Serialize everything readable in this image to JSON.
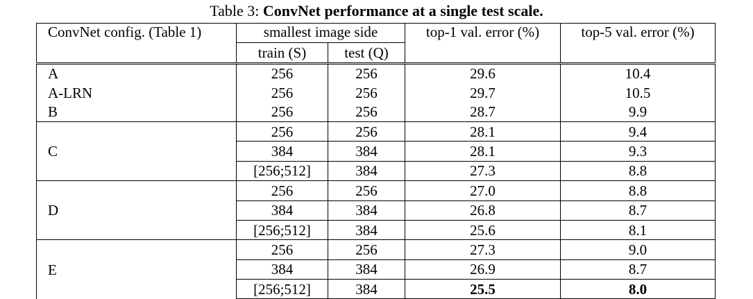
{
  "caption": {
    "label": "Table 3:",
    "title": "ConvNet performance at a single test scale."
  },
  "table": {
    "header": {
      "config": "ConvNet config. (Table 1)",
      "image_side": "smallest image side",
      "train": "train (S)",
      "test": "test (Q)",
      "top1": "top-1 val. error (%)",
      "top5": "top-5 val. error (%)"
    },
    "groups": [
      {
        "config": "A",
        "rows": [
          [
            "256",
            "256",
            "29.6",
            "10.4"
          ]
        ]
      },
      {
        "config": "A-LRN",
        "rows": [
          [
            "256",
            "256",
            "29.7",
            "10.5"
          ]
        ]
      },
      {
        "config": "B",
        "rows": [
          [
            "256",
            "256",
            "28.7",
            "9.9"
          ]
        ]
      },
      {
        "config": "C",
        "rows": [
          [
            "256",
            "256",
            "28.1",
            "9.4"
          ],
          [
            "384",
            "384",
            "28.1",
            "9.3"
          ],
          [
            "[256;512]",
            "384",
            "27.3",
            "8.8"
          ]
        ]
      },
      {
        "config": "D",
        "rows": [
          [
            "256",
            "256",
            "27.0",
            "8.8"
          ],
          [
            "384",
            "384",
            "26.8",
            "8.7"
          ],
          [
            "[256;512]",
            "384",
            "25.6",
            "8.1"
          ]
        ]
      },
      {
        "config": "E",
        "rows": [
          [
            "256",
            "256",
            "27.3",
            "9.0"
          ],
          [
            "384",
            "384",
            "26.9",
            "8.7"
          ],
          [
            "[256;512]",
            "384",
            "25.5",
            "8.0"
          ]
        ]
      }
    ]
  }
}
